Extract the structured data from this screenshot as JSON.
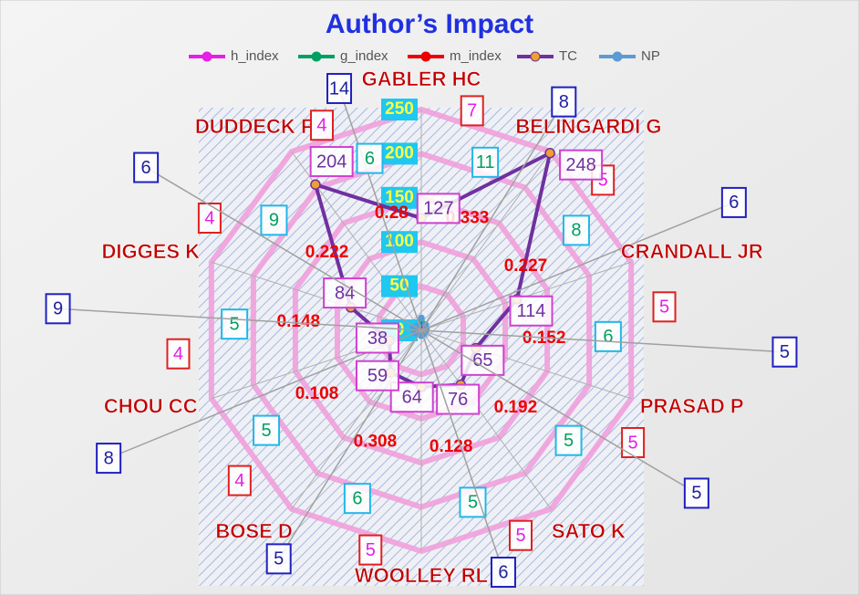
{
  "chart_data": {
    "type": "radar",
    "title": "Author’s Impact",
    "categories": [
      "GABLER HC",
      "BELINGARDI G",
      "CRANDALL JR",
      "PRASAD P",
      "SATO K",
      "WOOLLEY RL",
      "BOSE D",
      "CHOU CC",
      "DIGGES K",
      "DUDDECK F"
    ],
    "series": [
      {
        "name": "h_index",
        "color": "#e61ee6",
        "values": [
          7,
          5,
          5,
          5,
          5,
          5,
          4,
          4,
          4,
          4
        ]
      },
      {
        "name": "g_index",
        "color": "#00a060",
        "values": [
          11,
          8,
          6,
          5,
          5,
          6,
          5,
          5,
          9,
          6
        ]
      },
      {
        "name": "m_index",
        "color": "#ee0000",
        "values": [
          0.333,
          0.227,
          0.152,
          0.192,
          0.128,
          0.308,
          0.108,
          0.148,
          0.222,
          0.28
        ]
      },
      {
        "name": "TC",
        "color": "#7030a0",
        "values": [
          127,
          248,
          114,
          65,
          76,
          64,
          59,
          38,
          84,
          204
        ]
      },
      {
        "name": "NP",
        "color": "#5b9bd5",
        "values": [
          14,
          8,
          6,
          5,
          5,
          6,
          5,
          8,
          9,
          6
        ]
      }
    ],
    "rlim": [
      0,
      250
    ],
    "rticks": [
      0,
      50,
      100,
      150,
      200,
      250
    ],
    "grid": true,
    "legend": "top"
  }
}
